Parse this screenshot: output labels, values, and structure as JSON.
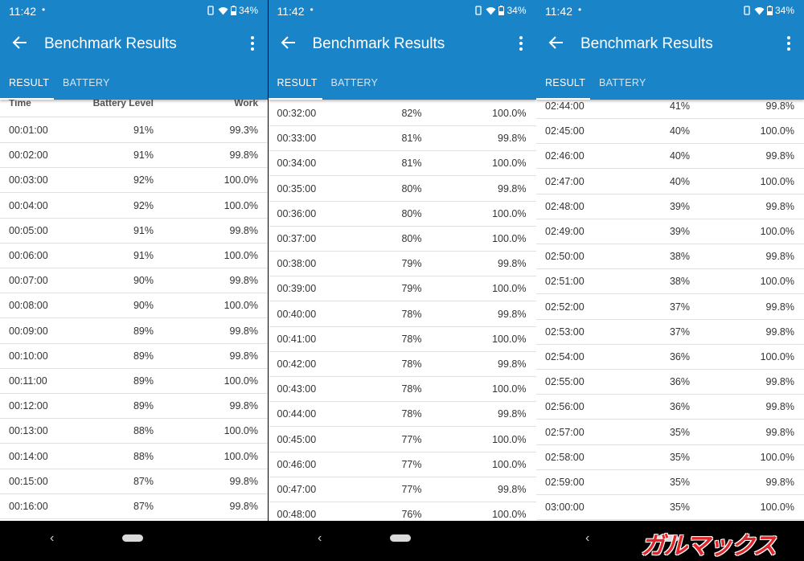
{
  "status": {
    "time": "11:42",
    "dot": "•",
    "battery": "34%"
  },
  "app": {
    "title": "Benchmark Results"
  },
  "tabs": {
    "result": "RESULT",
    "battery": "BATTERY"
  },
  "columns": {
    "time": "Time",
    "battery_level": "Battery Level",
    "work": "Work"
  },
  "panels": [
    {
      "rows": [
        [
          "00:01:00",
          "91%",
          "99.3%"
        ],
        [
          "00:02:00",
          "91%",
          "99.8%"
        ],
        [
          "00:03:00",
          "92%",
          "100.0%"
        ],
        [
          "00:04:00",
          "92%",
          "100.0%"
        ],
        [
          "00:05:00",
          "91%",
          "99.8%"
        ],
        [
          "00:06:00",
          "91%",
          "100.0%"
        ],
        [
          "00:07:00",
          "90%",
          "99.8%"
        ],
        [
          "00:08:00",
          "90%",
          "100.0%"
        ],
        [
          "00:09:00",
          "89%",
          "99.8%"
        ],
        [
          "00:10:00",
          "89%",
          "99.8%"
        ],
        [
          "00:11:00",
          "89%",
          "100.0%"
        ],
        [
          "00:12:00",
          "89%",
          "99.8%"
        ],
        [
          "00:13:00",
          "88%",
          "100.0%"
        ],
        [
          "00:14:00",
          "88%",
          "100.0%"
        ],
        [
          "00:15:00",
          "87%",
          "99.8%"
        ],
        [
          "00:16:00",
          "87%",
          "99.8%"
        ]
      ]
    },
    {
      "rows": [
        [
          "00:32:00",
          "82%",
          "100.0%"
        ],
        [
          "00:33:00",
          "81%",
          "99.8%"
        ],
        [
          "00:34:00",
          "81%",
          "100.0%"
        ],
        [
          "00:35:00",
          "80%",
          "99.8%"
        ],
        [
          "00:36:00",
          "80%",
          "100.0%"
        ],
        [
          "00:37:00",
          "80%",
          "100.0%"
        ],
        [
          "00:38:00",
          "79%",
          "99.8%"
        ],
        [
          "00:39:00",
          "79%",
          "100.0%"
        ],
        [
          "00:40:00",
          "78%",
          "99.8%"
        ],
        [
          "00:41:00",
          "78%",
          "100.0%"
        ],
        [
          "00:42:00",
          "78%",
          "99.8%"
        ],
        [
          "00:43:00",
          "78%",
          "100.0%"
        ],
        [
          "00:44:00",
          "78%",
          "99.8%"
        ],
        [
          "00:45:00",
          "77%",
          "100.0%"
        ],
        [
          "00:46:00",
          "77%",
          "100.0%"
        ],
        [
          "00:47:00",
          "77%",
          "99.8%"
        ],
        [
          "00:48:00",
          "76%",
          "100.0%"
        ]
      ]
    },
    {
      "rows": [
        [
          "02:44:00",
          "41%",
          "99.8%"
        ],
        [
          "02:45:00",
          "40%",
          "100.0%"
        ],
        [
          "02:46:00",
          "40%",
          "99.8%"
        ],
        [
          "02:47:00",
          "40%",
          "100.0%"
        ],
        [
          "02:48:00",
          "39%",
          "99.8%"
        ],
        [
          "02:49:00",
          "39%",
          "100.0%"
        ],
        [
          "02:50:00",
          "38%",
          "99.8%"
        ],
        [
          "02:51:00",
          "38%",
          "100.0%"
        ],
        [
          "02:52:00",
          "37%",
          "99.8%"
        ],
        [
          "02:53:00",
          "37%",
          "99.8%"
        ],
        [
          "02:54:00",
          "36%",
          "100.0%"
        ],
        [
          "02:55:00",
          "36%",
          "99.8%"
        ],
        [
          "02:56:00",
          "36%",
          "99.8%"
        ],
        [
          "02:57:00",
          "35%",
          "99.8%"
        ],
        [
          "02:58:00",
          "35%",
          "100.0%"
        ],
        [
          "02:59:00",
          "35%",
          "99.8%"
        ],
        [
          "03:00:00",
          "35%",
          "100.0%"
        ]
      ]
    }
  ],
  "watermark": "ガルマックス"
}
